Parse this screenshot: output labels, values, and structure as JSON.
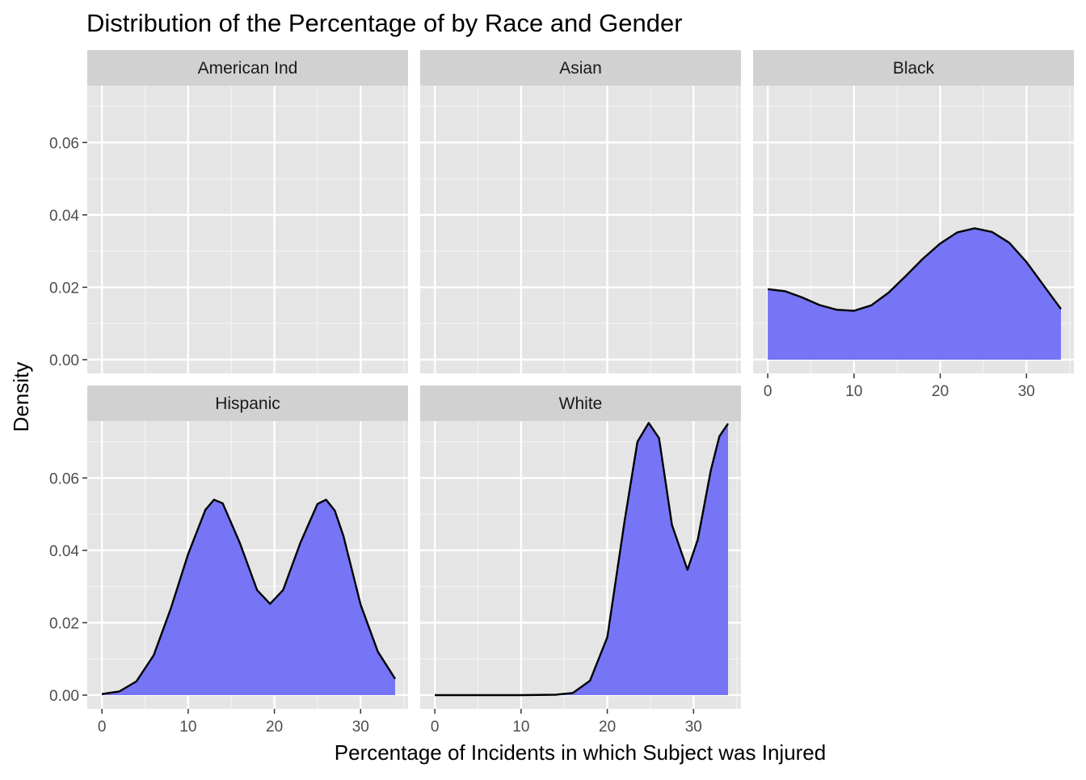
{
  "chart_data": {
    "type": "area",
    "title": "Distribution of the Percentage of by Race and Gender",
    "xlabel": "Percentage of Incidents in which Subject was Injured",
    "ylabel": "Density",
    "xlim": [
      -1.7,
      35.5
    ],
    "ylim": [
      -0.0038,
      0.0757
    ],
    "x_ticks": [
      0,
      10,
      20,
      30
    ],
    "y_ticks": [
      0.0,
      0.02,
      0.04,
      0.06
    ],
    "y_tick_labels": [
      "0.00",
      "0.02",
      "0.04",
      "0.06"
    ],
    "fill_color": "#7575f5",
    "line_color": "#000000",
    "panel_background": "#e5e5e5",
    "strip_background": "#d1d1d1",
    "grid": true,
    "facets": [
      {
        "label": "American Ind",
        "points": []
      },
      {
        "label": "Asian",
        "points": []
      },
      {
        "label": "Black",
        "points": [
          [
            0,
            0.0195
          ],
          [
            2,
            0.0189
          ],
          [
            4,
            0.0172
          ],
          [
            6,
            0.0151
          ],
          [
            8,
            0.0138
          ],
          [
            10,
            0.0135
          ],
          [
            12,
            0.015
          ],
          [
            14,
            0.0185
          ],
          [
            16,
            0.0231
          ],
          [
            18,
            0.0279
          ],
          [
            20,
            0.0321
          ],
          [
            22,
            0.0352
          ],
          [
            24,
            0.0363
          ],
          [
            26,
            0.0353
          ],
          [
            28,
            0.0323
          ],
          [
            30,
            0.027
          ],
          [
            32,
            0.0205
          ],
          [
            34,
            0.014
          ]
        ]
      },
      {
        "label": "Hispanic",
        "points": [
          [
            0,
            0.0003
          ],
          [
            2,
            0.001
          ],
          [
            4,
            0.0038
          ],
          [
            6,
            0.011
          ],
          [
            8,
            0.024
          ],
          [
            10,
            0.039
          ],
          [
            12,
            0.0512
          ],
          [
            13,
            0.054
          ],
          [
            14,
            0.053
          ],
          [
            16,
            0.042
          ],
          [
            18,
            0.029
          ],
          [
            19.5,
            0.0252
          ],
          [
            21,
            0.029
          ],
          [
            23,
            0.042
          ],
          [
            25,
            0.0528
          ],
          [
            26,
            0.054
          ],
          [
            27,
            0.051
          ],
          [
            28,
            0.044
          ],
          [
            30,
            0.025
          ],
          [
            32,
            0.012
          ],
          [
            34,
            0.0045
          ]
        ]
      },
      {
        "label": "White",
        "points": [
          [
            0,
            0.0
          ],
          [
            5,
            0.0
          ],
          [
            10,
            0.0
          ],
          [
            14,
            0.0001
          ],
          [
            16,
            0.0006
          ],
          [
            18,
            0.004
          ],
          [
            20,
            0.016
          ],
          [
            22,
            0.048
          ],
          [
            23.5,
            0.07
          ],
          [
            24.8,
            0.0752
          ],
          [
            26,
            0.071
          ],
          [
            27.5,
            0.047
          ],
          [
            29.3,
            0.0346
          ],
          [
            30.5,
            0.043
          ],
          [
            32,
            0.062
          ],
          [
            33,
            0.0715
          ],
          [
            34,
            0.075
          ]
        ]
      }
    ]
  }
}
